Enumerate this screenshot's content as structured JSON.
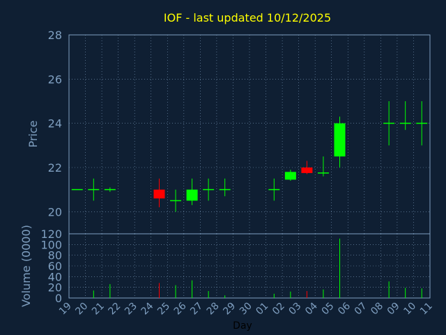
{
  "chart_data": {
    "type": "candlestick",
    "title": "IOF - last updated 10/12/2025",
    "xlabel": "Day",
    "x_ticks": [
      "19",
      "20",
      "21",
      "22",
      "23",
      "24",
      "25",
      "26",
      "27",
      "28",
      "29",
      "30",
      "01",
      "02",
      "03",
      "04",
      "05",
      "06",
      "07",
      "08",
      "09",
      "10",
      "11"
    ],
    "price_panel": {
      "ylabel": "Price",
      "ylim": [
        19,
        28
      ],
      "yticks": [
        20,
        22,
        24,
        26,
        28
      ],
      "grid": true
    },
    "volume_panel": {
      "ylabel": "Volume (0000)",
      "ylim": [
        0,
        120
      ],
      "yticks": [
        0,
        20,
        40,
        60,
        80,
        100,
        120
      ],
      "grid": true
    },
    "candles": [
      {
        "x": 0,
        "open": 21.0,
        "high": 21.0,
        "low": 21.0,
        "close": 21.0,
        "volume": 0
      },
      {
        "x": 1,
        "open": 21.0,
        "high": 21.5,
        "low": 20.5,
        "close": 21.0,
        "volume": 14
      },
      {
        "x": 2,
        "open": 21.0,
        "high": 21.1,
        "low": 20.9,
        "close": 21.0,
        "volume": 26
      },
      {
        "x": 5,
        "open": 21.0,
        "high": 21.5,
        "low": 20.2,
        "close": 20.6,
        "volume": 28
      },
      {
        "x": 6,
        "open": 20.5,
        "high": 21.0,
        "low": 20.0,
        "close": 20.5,
        "volume": 24
      },
      {
        "x": 7,
        "open": 20.5,
        "high": 21.5,
        "low": 20.3,
        "close": 21.0,
        "volume": 33
      },
      {
        "x": 8,
        "open": 21.0,
        "high": 21.5,
        "low": 20.5,
        "close": 21.0,
        "volume": 13
      },
      {
        "x": 9,
        "open": 21.0,
        "high": 21.5,
        "low": 20.7,
        "close": 21.0,
        "volume": 5
      },
      {
        "x": 12,
        "open": 21.0,
        "high": 21.5,
        "low": 20.5,
        "close": 21.0,
        "volume": 8
      },
      {
        "x": 13,
        "open": 21.45,
        "high": 21.9,
        "low": 21.4,
        "close": 21.8,
        "volume": 12
      },
      {
        "x": 14,
        "open": 22.0,
        "high": 22.3,
        "low": 21.7,
        "close": 21.75,
        "volume": 13
      },
      {
        "x": 15,
        "open": 21.75,
        "high": 22.5,
        "low": 21.6,
        "close": 21.75,
        "volume": 16
      },
      {
        "x": 16,
        "open": 22.5,
        "high": 24.3,
        "low": 22.0,
        "close": 24.0,
        "volume": 111
      },
      {
        "x": 19,
        "open": 24.0,
        "high": 25.0,
        "low": 23.0,
        "close": 24.0,
        "volume": 31
      },
      {
        "x": 20,
        "open": 24.0,
        "high": 25.0,
        "low": 23.7,
        "close": 24.0,
        "volume": 19
      },
      {
        "x": 21,
        "open": 24.0,
        "high": 25.0,
        "low": 23.0,
        "close": 24.0,
        "volume": 18
      }
    ],
    "colors": {
      "up": "#00ff00",
      "down": "#ff0000",
      "background": "#0f1f33",
      "grid": "#7f9fc0",
      "title": "#ffff00",
      "axis_text": "#7f9fc0",
      "xlabel": "#000000"
    }
  }
}
